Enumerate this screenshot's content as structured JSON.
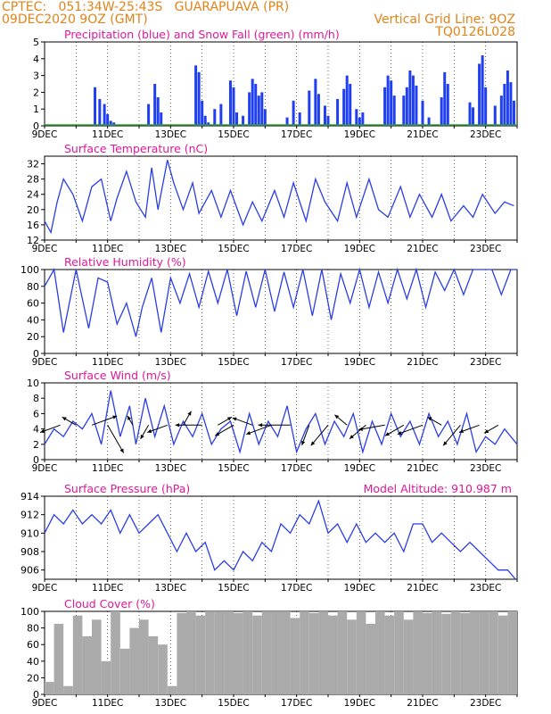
{
  "header": {
    "line1_left": "CPTEC:   051:34W-25:43S   GUARAPUAVA (PR)",
    "line2_left": "09DEC2020 9OZ (GMT)",
    "line2_right": "Vertical Grid Line: 9OZ",
    "line3_right": "TQ0126L028"
  },
  "colors": {
    "accent_orange": "#e0841a",
    "title_magenta": "#e0189a",
    "line_blue": "#2a3ee6",
    "bar_blue": "#1f3ff0",
    "snow_green": "#2ca02c",
    "cloud_gray": "#aaaaaa"
  },
  "x_ticks": [
    "9DEC",
    "11DEC",
    "13DEC",
    "15DEC",
    "17DEC",
    "19DEC",
    "21DEC",
    "23DEC"
  ],
  "chart_data": [
    {
      "type": "bar",
      "title": "Precipitation (blue) and Snow Fall (green) (mm/h)",
      "ylim": [
        0,
        5
      ],
      "yticks": [
        "0",
        "1",
        "2",
        "3",
        "4",
        "5"
      ],
      "x_days": [
        10.6,
        10.75,
        10.9,
        11.0,
        11.1,
        11.2,
        12.3,
        12.5,
        12.6,
        12.7,
        13.8,
        13.9,
        14.0,
        14.1,
        14.2,
        14.4,
        14.6,
        14.9,
        15.0,
        15.1,
        15.3,
        15.5,
        15.6,
        15.7,
        15.8,
        15.9,
        16.0,
        16.7,
        16.9,
        17.1,
        17.4,
        17.6,
        17.7,
        17.9,
        18.0,
        18.3,
        18.5,
        18.6,
        18.7,
        18.9,
        19.0,
        19.1,
        19.8,
        19.9,
        20.0,
        20.1,
        20.4,
        20.5,
        20.6,
        20.7,
        20.8,
        21.0,
        21.2,
        21.6,
        21.7,
        21.8,
        22.5,
        22.6,
        22.8,
        22.9,
        23.0,
        23.3,
        23.5,
        23.6,
        23.7,
        23.8,
        23.9
      ],
      "values": [
        2.3,
        1.6,
        1.3,
        0.7,
        0.3,
        0.2,
        1.3,
        2.5,
        1.7,
        0.8,
        3.6,
        3.2,
        1.5,
        0.6,
        0.2,
        1.0,
        1.3,
        2.7,
        2.3,
        0.8,
        0.6,
        2.0,
        2.8,
        2.5,
        1.8,
        2.0,
        1.0,
        0.5,
        1.5,
        0.8,
        2.1,
        2.8,
        1.9,
        1.2,
        0.6,
        1.6,
        2.2,
        3.0,
        2.5,
        1.0,
        0.5,
        0.8,
        2.3,
        3.0,
        2.7,
        1.8,
        1.8,
        2.3,
        3.3,
        3.0,
        2.4,
        1.5,
        0.5,
        1.7,
        3.2,
        2.5,
        1.4,
        1.1,
        3.7,
        4.2,
        2.3,
        1.2,
        1.8,
        2.5,
        3.3,
        2.6,
        1.5
      ],
      "snow": "0"
    },
    {
      "type": "line",
      "title": "Surface Temperature (nC)",
      "ylim": [
        12,
        34
      ],
      "yticks": [
        "12",
        "16",
        "20",
        "24",
        "28",
        "32"
      ],
      "x_days": [
        9.0,
        9.2,
        9.4,
        9.6,
        9.9,
        10.2,
        10.5,
        10.8,
        11.1,
        11.3,
        11.6,
        11.9,
        12.2,
        12.4,
        12.6,
        12.9,
        13.1,
        13.4,
        13.7,
        13.9,
        14.3,
        14.6,
        14.9,
        15.3,
        15.6,
        15.9,
        16.3,
        16.6,
        16.9,
        17.3,
        17.6,
        17.9,
        18.3,
        18.6,
        18.9,
        19.3,
        19.6,
        19.9,
        20.3,
        20.6,
        20.9,
        21.3,
        21.6,
        21.9,
        22.3,
        22.6,
        22.9,
        23.3,
        23.6,
        23.9
      ],
      "values": [
        17,
        14,
        22,
        28,
        24,
        17,
        26,
        28,
        17,
        23,
        30,
        22,
        18,
        31,
        20,
        33,
        27,
        20,
        27,
        19,
        25,
        18,
        25,
        16,
        22,
        17,
        25,
        18,
        27,
        17,
        28,
        22,
        17,
        27,
        18,
        28,
        20,
        18,
        26,
        18,
        24,
        18,
        24,
        17,
        21,
        18,
        24,
        19,
        22,
        21
      ]
    },
    {
      "type": "line",
      "title": "Relative Humidity (%)",
      "ylim": [
        0,
        100
      ],
      "yticks": [
        "0",
        "20",
        "40",
        "60",
        "80",
        "100"
      ],
      "x_days": [
        9.0,
        9.3,
        9.6,
        10.0,
        10.4,
        10.7,
        11.0,
        11.3,
        11.6,
        11.9,
        12.1,
        12.4,
        12.7,
        13.0,
        13.3,
        13.6,
        13.9,
        14.2,
        14.5,
        14.8,
        15.1,
        15.4,
        15.7,
        16.0,
        16.3,
        16.6,
        16.9,
        17.2,
        17.5,
        17.8,
        18.1,
        18.4,
        18.7,
        19.0,
        19.3,
        19.6,
        19.9,
        20.2,
        20.5,
        20.8,
        21.1,
        21.4,
        21.7,
        22.0,
        22.3,
        22.6,
        22.9,
        23.2,
        23.5,
        23.8,
        24.0
      ],
      "values": [
        80,
        100,
        25,
        100,
        30,
        90,
        85,
        35,
        60,
        20,
        55,
        90,
        25,
        90,
        60,
        95,
        55,
        98,
        60,
        100,
        45,
        98,
        55,
        100,
        50,
        97,
        55,
        100,
        45,
        100,
        40,
        95,
        60,
        100,
        55,
        97,
        60,
        100,
        65,
        100,
        55,
        97,
        75,
        100,
        70,
        100,
        100,
        100,
        70,
        100,
        100
      ]
    },
    {
      "type": "line",
      "title": "Surface Wind (m/s)",
      "ylim": [
        0,
        10
      ],
      "yticks": [
        "0",
        "2",
        "4",
        "6",
        "8",
        "10"
      ],
      "x_days": [
        9.0,
        9.3,
        9.6,
        9.9,
        10.2,
        10.5,
        10.8,
        11.1,
        11.4,
        11.7,
        11.9,
        12.2,
        12.5,
        12.8,
        13.1,
        13.4,
        13.7,
        14.0,
        14.3,
        14.6,
        14.9,
        15.2,
        15.5,
        15.8,
        16.1,
        16.4,
        16.7,
        17.0,
        17.3,
        17.6,
        17.9,
        18.2,
        18.5,
        18.8,
        19.1,
        19.4,
        19.7,
        20.0,
        20.3,
        20.6,
        20.9,
        21.2,
        21.5,
        21.8,
        22.1,
        22.4,
        22.7,
        23.0,
        23.3,
        23.6,
        24.0
      ],
      "values": [
        2,
        4,
        3,
        5,
        4,
        6,
        2,
        9,
        3,
        7,
        2,
        8,
        3,
        7,
        2,
        5,
        3,
        6,
        2,
        4,
        5,
        1,
        6,
        2,
        5,
        3,
        7,
        1,
        4,
        6,
        2,
        5,
        3,
        6,
        1,
        5,
        2,
        6,
        3,
        5,
        2,
        6,
        3,
        5,
        2,
        6,
        1,
        3,
        2,
        4,
        2
      ],
      "arrows_days": [
        9.5,
        10.0,
        10.5,
        11.0,
        11.8,
        12.3,
        12.9,
        13.4,
        14.0,
        14.5,
        15.0,
        15.6,
        16.2,
        16.8,
        17.4,
        18.0,
        18.6,
        19.2,
        19.8,
        20.4,
        21.0,
        21.6,
        22.2,
        22.8,
        23.4
      ],
      "arrows_angle": [
        200,
        150,
        20,
        300,
        120,
        240,
        200,
        60,
        180,
        30,
        210,
        160,
        200,
        180,
        250,
        230,
        140,
        220,
        190,
        210,
        200,
        150,
        230,
        200,
        210
      ],
      "arrows_len": [
        4,
        3,
        5,
        6,
        2,
        3,
        4,
        3,
        5,
        3,
        4,
        4,
        5,
        6,
        4,
        5,
        3,
        4,
        5,
        4,
        5,
        3,
        5,
        4,
        3
      ]
    },
    {
      "type": "line",
      "title": "Surface Pressure (hPa)",
      "annotation": "Model Altitude: 910.987 m",
      "ylim": [
        905,
        914
      ],
      "yticks": [
        "906",
        "908",
        "910",
        "912",
        "914"
      ],
      "x_days": [
        9.0,
        9.3,
        9.6,
        9.9,
        10.2,
        10.5,
        10.8,
        11.1,
        11.4,
        11.7,
        12.0,
        12.3,
        12.6,
        12.9,
        13.2,
        13.5,
        13.8,
        14.1,
        14.4,
        14.7,
        15.0,
        15.3,
        15.6,
        15.9,
        16.2,
        16.5,
        16.8,
        17.1,
        17.4,
        17.7,
        18.0,
        18.3,
        18.6,
        18.9,
        19.2,
        19.5,
        19.8,
        20.1,
        20.4,
        20.7,
        21.0,
        21.3,
        21.6,
        21.9,
        22.2,
        22.5,
        22.8,
        23.1,
        23.4,
        23.7,
        23.95
      ],
      "values": [
        910,
        912,
        911,
        912.5,
        911,
        912,
        911,
        912.5,
        910,
        912,
        910,
        911,
        912,
        910,
        908,
        910,
        908,
        909,
        906,
        907,
        906,
        908,
        907,
        909,
        908,
        911,
        910,
        912,
        911,
        913.5,
        910,
        911,
        909,
        911,
        909,
        910,
        909,
        910,
        908,
        911,
        911,
        909,
        910,
        909,
        908,
        909,
        908,
        907,
        906,
        906,
        905
      ]
    },
    {
      "type": "bar",
      "title": "Cloud Cover (%)",
      "ylim": [
        0,
        100
      ],
      "yticks": [
        "0",
        "20",
        "40",
        "60",
        "80",
        "100"
      ],
      "x_days": [
        9.0,
        9.3,
        9.6,
        9.9,
        10.2,
        10.5,
        10.8,
        11.1,
        11.4,
        11.7,
        12.0,
        12.3,
        12.6,
        12.9,
        13.2,
        13.5,
        13.8,
        14.1,
        14.4,
        14.7,
        15.0,
        15.3,
        15.6,
        15.9,
        16.2,
        16.5,
        16.8,
        17.1,
        17.4,
        17.7,
        18.0,
        18.3,
        18.6,
        18.9,
        19.2,
        19.5,
        19.8,
        20.1,
        20.4,
        20.7,
        21.0,
        21.3,
        21.6,
        21.9,
        22.2,
        22.5,
        22.8,
        23.1,
        23.4,
        23.7
      ],
      "values": [
        15,
        85,
        10,
        95,
        70,
        90,
        40,
        100,
        55,
        80,
        90,
        70,
        60,
        10,
        98,
        100,
        95,
        100,
        100,
        100,
        98,
        100,
        95,
        100,
        100,
        100,
        92,
        100,
        98,
        100,
        95,
        100,
        90,
        100,
        85,
        100,
        95,
        100,
        90,
        100,
        98,
        100,
        97,
        100,
        98,
        100,
        100,
        100,
        95,
        100
      ]
    }
  ]
}
